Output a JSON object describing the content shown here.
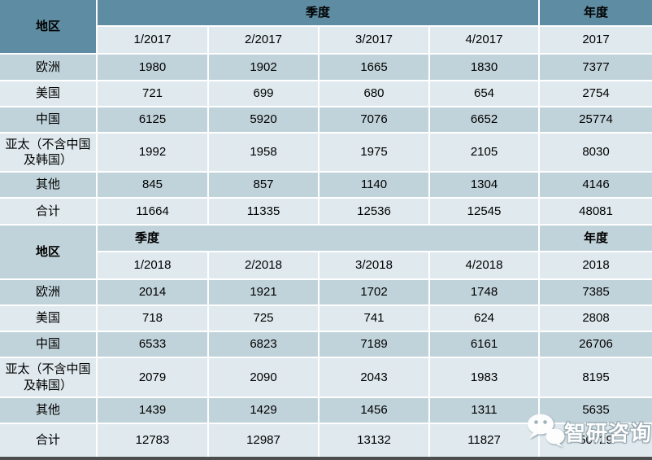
{
  "chart_data": {
    "type": "table",
    "sections": [
      {
        "region_header": "地区",
        "quarter_header": "季度",
        "annual_header": "年度",
        "quarter_labels": [
          "1/2017",
          "2/2017",
          "3/2017",
          "4/2017"
        ],
        "annual_label": "2017",
        "rows": [
          {
            "region": "欧洲",
            "quarters": [
              "1980",
              "1902",
              "1665",
              "1830"
            ],
            "annual": "7377"
          },
          {
            "region": "美国",
            "quarters": [
              "721",
              "699",
              "680",
              "654"
            ],
            "annual": "2754"
          },
          {
            "region": "中国",
            "quarters": [
              "6125",
              "5920",
              "7076",
              "6652"
            ],
            "annual": "25774"
          },
          {
            "region": "亚太（不含中国及韩国）",
            "quarters": [
              "1992",
              "1958",
              "1975",
              "2105"
            ],
            "annual": "8030"
          },
          {
            "region": "其他",
            "quarters": [
              "845",
              "857",
              "1140",
              "1304"
            ],
            "annual": "4146"
          },
          {
            "region": "合计",
            "quarters": [
              "11664",
              "11335",
              "12536",
              "12545"
            ],
            "annual": "48081"
          }
        ]
      },
      {
        "region_header": "地区",
        "quarter_header": "季度",
        "annual_header": "年度",
        "quarter_labels": [
          "1/2018",
          "2/2018",
          "3/2018",
          "4/2018"
        ],
        "annual_label": "2018",
        "rows": [
          {
            "region": "欧洲",
            "quarters": [
              "2014",
              "1921",
              "1702",
              "1748"
            ],
            "annual": "7385"
          },
          {
            "region": "美国",
            "quarters": [
              "718",
              "725",
              "741",
              "624"
            ],
            "annual": "2808"
          },
          {
            "region": "中国",
            "quarters": [
              "6533",
              "6823",
              "7189",
              "6161"
            ],
            "annual": "26706"
          },
          {
            "region": "亚太（不含中国及韩国）",
            "quarters": [
              "2079",
              "2090",
              "2043",
              "1983"
            ],
            "annual": "8195"
          },
          {
            "region": "其他",
            "quarters": [
              "1439",
              "1429",
              "1456",
              "1311"
            ],
            "annual": "5635"
          },
          {
            "region": "合计",
            "quarters": [
              "12783",
              "12987",
              "13132",
              "11827"
            ],
            "annual": "50729"
          }
        ]
      }
    ]
  },
  "watermark": {
    "text": "智研咨询",
    "icon": "wechat-bubbles-icon"
  },
  "colors": {
    "header_teal": "#5e8ca2",
    "row_dark": "#c1d3da",
    "row_light": "#dfe9ee",
    "grid_line": "#ffffff",
    "bottom_bar": "#4d4d4d",
    "text": "#000000",
    "watermark_outline": "#8fa2ab"
  }
}
